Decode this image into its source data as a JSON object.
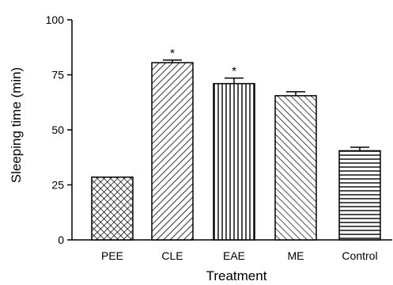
{
  "chart_data": {
    "type": "bar",
    "title": "",
    "xlabel": "Treatment",
    "ylabel": "Sleeping time (min)",
    "ylim": [
      0,
      100
    ],
    "yticks": [
      0,
      25,
      50,
      75,
      100
    ],
    "yticks_labels": [
      "0",
      "25",
      "50",
      "75",
      "100"
    ],
    "grid": false,
    "categories": [
      "PEE",
      "CLE",
      "EAE",
      "ME",
      "Control"
    ],
    "values": [
      28.5,
      80.5,
      71,
      65.5,
      40.5
    ],
    "errors": [
      0,
      1.2,
      2.5,
      1.8,
      1.6
    ],
    "significance": [
      "",
      "*",
      "*",
      "",
      ""
    ],
    "fill_patterns": [
      "crosshatch",
      "diagonal-up",
      "vertical",
      "diagonal-down",
      "horizontal"
    ]
  }
}
